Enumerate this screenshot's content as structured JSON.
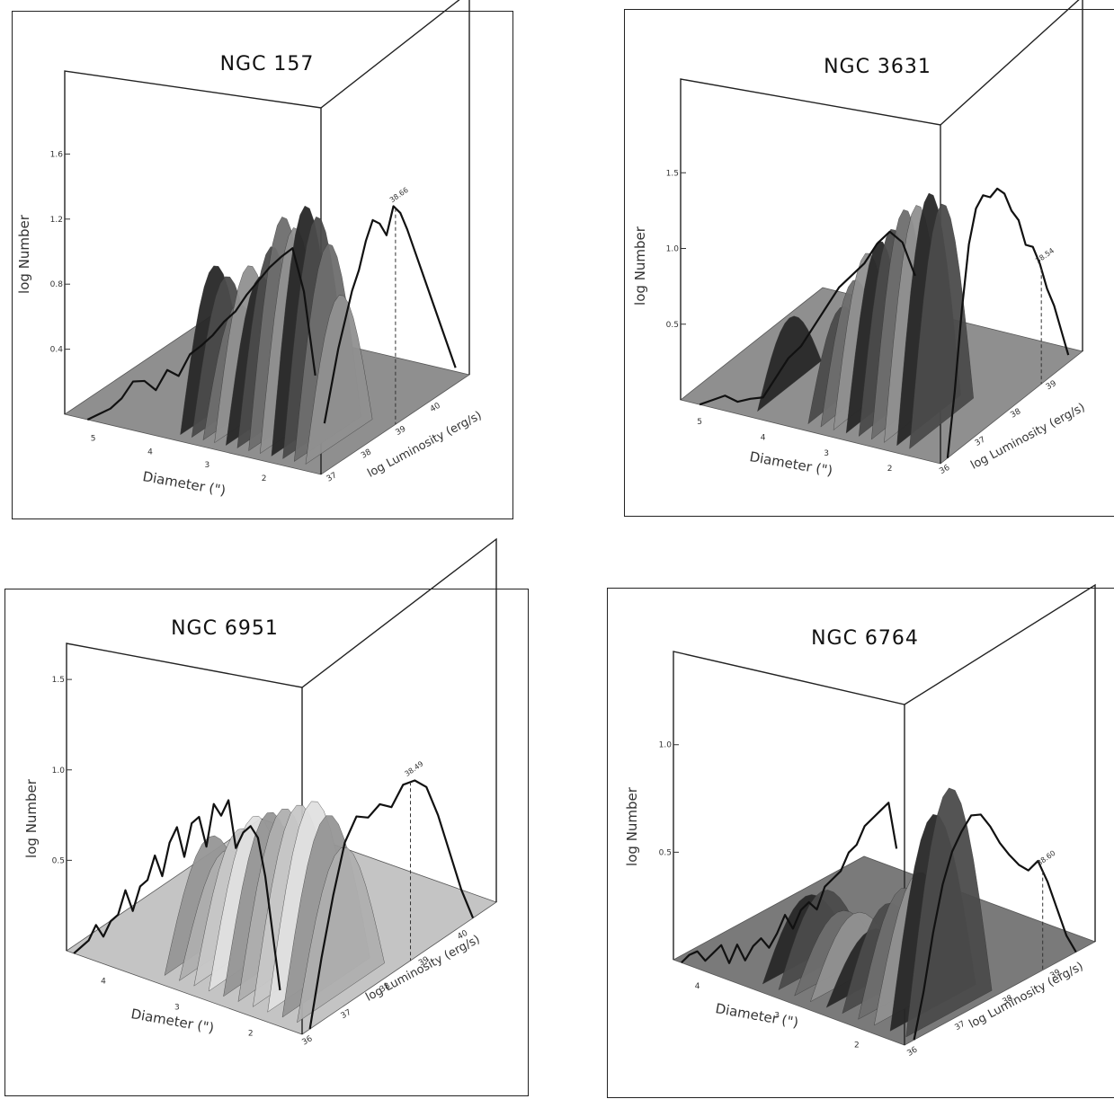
{
  "chart_data": [
    {
      "type": "area",
      "title": "NGC 157",
      "ylabel": "log Number",
      "xlabel": "Diameter (\")",
      "zlabel": "log Luminosity (erg/s)",
      "y_ticks": [
        "0.4",
        "0.8",
        "1.2",
        "1.6"
      ],
      "y_tick_values": [
        0.4,
        0.8,
        1.2,
        1.6
      ],
      "ylim": [
        0,
        2.0
      ],
      "diameter_ticks": [
        "5",
        "4",
        "3",
        "2"
      ],
      "diameter_tick_values": [
        5,
        4,
        3,
        2
      ],
      "diameter_range": [
        5.5,
        1.0
      ],
      "luminosity_ticks": [
        "37",
        "38",
        "39",
        "40"
      ],
      "luminosity_tick_values": [
        37,
        38,
        39,
        40
      ],
      "luminosity_range": [
        36.5,
        40.8
      ],
      "peak_label": "38.66",
      "peak_luminosity": 38.66,
      "floor_color": "#8f8f8f",
      "surface_tone": "dark",
      "diameter_curve": {
        "x": [
          5.1,
          4.9,
          4.7,
          4.5,
          4.3,
          4.1,
          3.9,
          3.7,
          3.5,
          3.3,
          3.1,
          2.9,
          2.7,
          2.5,
          2.3,
          2.1,
          1.9,
          1.7,
          1.5,
          1.3,
          1.1
        ],
        "y": [
          0.0,
          0.05,
          0.1,
          0.18,
          0.3,
          0.32,
          0.28,
          0.42,
          0.4,
          0.55,
          0.62,
          0.7,
          0.8,
          0.88,
          1.0,
          1.1,
          1.2,
          1.28,
          1.35,
          1.1,
          0.6
        ]
      },
      "luminosity_curve": {
        "x": [
          36.6,
          36.8,
          37.0,
          37.2,
          37.4,
          37.6,
          37.8,
          38.0,
          38.2,
          38.4,
          38.6,
          38.8,
          39.0,
          39.2,
          39.4,
          39.6,
          39.8,
          40.0,
          40.2,
          40.4
        ],
        "y": [
          0.3,
          0.5,
          0.7,
          0.85,
          1.0,
          1.1,
          1.25,
          1.35,
          1.3,
          1.2,
          1.35,
          1.28,
          1.15,
          1.0,
          0.85,
          0.7,
          0.55,
          0.4,
          0.25,
          0.1
        ]
      },
      "surface_ridges": {
        "diameter": [
          3.6,
          3.4,
          3.2,
          3.0,
          2.8,
          2.6,
          2.4,
          2.2,
          2.0,
          1.8,
          1.6,
          1.4
        ],
        "height": [
          0.9,
          0.85,
          0.7,
          0.95,
          0.9,
          1.1,
          1.3,
          1.25,
          1.4,
          1.35,
          1.2,
          0.9
        ]
      }
    },
    {
      "type": "area",
      "title": "NGC 3631",
      "ylabel": "log Number",
      "xlabel": "Diameter (\")",
      "zlabel": "log Luminosity (erg/s)",
      "y_ticks": [
        "0.5",
        "1.0",
        "1.5"
      ],
      "y_tick_values": [
        0.5,
        1.0,
        1.5
      ],
      "ylim": [
        0,
        2.0
      ],
      "diameter_ticks": [
        "5",
        "4",
        "3",
        "2"
      ],
      "diameter_tick_values": [
        5,
        4,
        3,
        2
      ],
      "diameter_range": [
        5.3,
        1.2
      ],
      "luminosity_ticks": [
        "36",
        "37",
        "38",
        "39"
      ],
      "luminosity_tick_values": [
        36,
        37,
        38,
        39
      ],
      "luminosity_range": [
        35.7,
        39.7
      ],
      "peak_label": "38.54",
      "peak_luminosity": 38.54,
      "floor_color": "#8f8f8f",
      "surface_tone": "dark",
      "diameter_curve": {
        "x": [
          5.0,
          4.8,
          4.6,
          4.4,
          4.2,
          4.0,
          3.8,
          3.6,
          3.4,
          3.2,
          3.0,
          2.8,
          2.6,
          2.4,
          2.2,
          2.0,
          1.8,
          1.6
        ],
        "y": [
          0.0,
          0.05,
          0.1,
          0.08,
          0.12,
          0.15,
          0.3,
          0.45,
          0.55,
          0.7,
          0.85,
          1.0,
          1.1,
          1.2,
          1.35,
          1.45,
          1.4,
          1.2
        ]
      },
      "luminosity_curve": {
        "x": [
          35.9,
          36.1,
          36.3,
          36.5,
          36.7,
          36.9,
          37.1,
          37.3,
          37.5,
          37.7,
          37.9,
          38.1,
          38.3,
          38.5,
          38.7,
          38.9,
          39.1,
          39.3
        ],
        "y": [
          0.0,
          0.4,
          0.9,
          1.3,
          1.5,
          1.55,
          1.5,
          1.52,
          1.45,
          1.3,
          1.2,
          1.0,
          0.95,
          0.8,
          0.6,
          0.45,
          0.25,
          0.05
        ]
      },
      "surface_ridges": {
        "diameter": [
          4.2,
          3.4,
          3.2,
          3.0,
          2.8,
          2.6,
          2.4,
          2.2,
          2.0,
          1.8
        ],
        "height": [
          0.45,
          0.6,
          0.8,
          1.0,
          1.1,
          1.2,
          1.35,
          1.4,
          1.5,
          1.45
        ]
      }
    },
    {
      "type": "area",
      "title": "NGC 6951",
      "ylabel": "log Number",
      "xlabel": "Diameter (\")",
      "zlabel": "log Luminosity (erg/s)",
      "y_ticks": [
        "0.5",
        "1.0",
        "1.5"
      ],
      "y_tick_values": [
        0.5,
        1.0,
        1.5
      ],
      "ylim": [
        0,
        1.6
      ],
      "diameter_ticks": [
        "4",
        "3",
        "2"
      ],
      "diameter_tick_values": [
        4,
        3,
        2
      ],
      "diameter_range": [
        4.5,
        1.3
      ],
      "luminosity_ticks": [
        "36",
        "37",
        "38",
        "39",
        "40"
      ],
      "luminosity_tick_values": [
        36,
        37,
        38,
        39,
        40
      ],
      "luminosity_range": [
        35.7,
        40.7
      ],
      "peak_label": "38.49",
      "peak_luminosity": 38.49,
      "floor_color": "#c4c4c4",
      "surface_tone": "light",
      "diameter_curve": {
        "x": [
          4.4,
          4.3,
          4.2,
          4.1,
          4.0,
          3.9,
          3.8,
          3.7,
          3.6,
          3.5,
          3.4,
          3.3,
          3.2,
          3.1,
          3.0,
          2.9,
          2.8,
          2.7,
          2.6,
          2.5,
          2.4,
          2.3,
          2.2,
          2.1,
          2.0,
          1.9,
          1.8,
          1.7,
          1.6
        ],
        "y": [
          0.0,
          0.05,
          0.1,
          0.2,
          0.15,
          0.25,
          0.3,
          0.45,
          0.35,
          0.5,
          0.55,
          0.7,
          0.6,
          0.8,
          0.9,
          0.75,
          0.95,
          1.0,
          0.85,
          1.1,
          1.05,
          1.15,
          0.9,
          1.0,
          1.05,
          1.0,
          0.8,
          0.5,
          0.2
        ]
      },
      "luminosity_curve": {
        "x": [
          35.9,
          36.2,
          36.5,
          36.8,
          37.1,
          37.4,
          37.7,
          38.0,
          38.3,
          38.6,
          38.9,
          39.2,
          39.5,
          39.8,
          40.1
        ],
        "y": [
          0.0,
          0.35,
          0.65,
          0.9,
          1.0,
          0.95,
          0.98,
          0.92,
          1.0,
          0.98,
          0.9,
          0.7,
          0.45,
          0.2,
          0.0
        ]
      },
      "surface_ridges": {
        "diameter": [
          3.3,
          3.1,
          2.9,
          2.7,
          2.5,
          2.3,
          2.1,
          1.9,
          1.7,
          1.5
        ],
        "height": [
          0.6,
          0.55,
          0.7,
          0.8,
          0.85,
          0.9,
          0.95,
          1.0,
          0.95,
          0.8
        ]
      }
    },
    {
      "type": "area",
      "title": "NGC 6764",
      "ylabel": "log Number",
      "xlabel": "Diameter (\")",
      "zlabel": "log Luminosity (erg/s)",
      "y_ticks": [
        "0.5",
        "1.0"
      ],
      "y_tick_values": [
        0.5,
        1.0
      ],
      "ylim": [
        0,
        1.35
      ],
      "diameter_ticks": [
        "4",
        "3",
        "2"
      ],
      "diameter_tick_values": [
        4,
        3,
        2
      ],
      "diameter_range": [
        4.3,
        1.4
      ],
      "luminosity_ticks": [
        "36",
        "37",
        "38",
        "39"
      ],
      "luminosity_tick_values": [
        36,
        37,
        38,
        39
      ],
      "luminosity_range": [
        35.7,
        39.7
      ],
      "peak_label": "38.60",
      "peak_luminosity": 38.6,
      "floor_color": "#7a7a7a",
      "surface_tone": "dark",
      "diameter_curve": {
        "x": [
          4.2,
          4.1,
          4.0,
          3.9,
          3.8,
          3.7,
          3.6,
          3.5,
          3.4,
          3.3,
          3.2,
          3.1,
          3.0,
          2.9,
          2.8,
          2.7,
          2.6,
          2.5,
          2.4,
          2.3,
          2.2,
          2.1,
          2.0,
          1.9,
          1.8,
          1.7,
          1.6,
          1.5
        ],
        "y": [
          0.0,
          0.05,
          0.08,
          0.05,
          0.1,
          0.15,
          0.08,
          0.18,
          0.12,
          0.2,
          0.25,
          0.22,
          0.3,
          0.4,
          0.35,
          0.45,
          0.5,
          0.48,
          0.6,
          0.65,
          0.7,
          0.8,
          0.85,
          0.95,
          1.0,
          1.05,
          1.1,
          0.9
        ]
      },
      "luminosity_curve": {
        "x": [
          35.9,
          36.1,
          36.3,
          36.5,
          36.7,
          36.9,
          37.1,
          37.3,
          37.5,
          37.7,
          37.9,
          38.1,
          38.3,
          38.5,
          38.7,
          38.9,
          39.1,
          39.3
        ],
        "y": [
          0.0,
          0.2,
          0.45,
          0.65,
          0.78,
          0.85,
          0.9,
          0.88,
          0.8,
          0.7,
          0.62,
          0.55,
          0.5,
          0.52,
          0.4,
          0.25,
          0.1,
          0.0
        ]
      },
      "surface_ridges": {
        "diameter": [
          3.3,
          3.1,
          2.9,
          2.7,
          2.5,
          2.3,
          2.1,
          1.9,
          1.7,
          1.5
        ],
        "height": [
          0.3,
          0.35,
          0.28,
          0.3,
          0.25,
          0.4,
          0.5,
          0.6,
          0.9,
          1.05
        ]
      }
    }
  ]
}
